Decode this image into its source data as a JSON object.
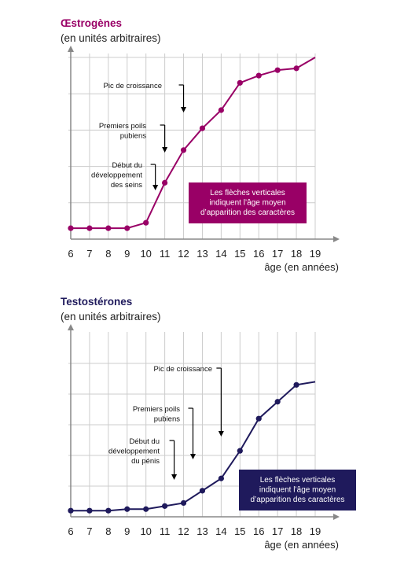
{
  "colors": {
    "estrogen": "#990066",
    "testosterone": "#1f1a5c",
    "grid": "#cccccc",
    "axis": "#888888"
  },
  "chart_data": [
    {
      "type": "line",
      "title": "Œstrogènes",
      "ylabel": "(en unités arbitraires)",
      "xlabel": "âge (en années)",
      "x": [
        6,
        7,
        8,
        9,
        10,
        11,
        12,
        13,
        14,
        15,
        16,
        17,
        18,
        19
      ],
      "xlim": [
        6,
        19
      ],
      "ylim": [
        0,
        100
      ],
      "grid": true,
      "series": [
        {
          "values": [
            6,
            6,
            6,
            6,
            9,
            31,
            49,
            61,
            71,
            86,
            90,
            93,
            94,
            100
          ]
        }
      ],
      "annotations": [
        {
          "lines": [
            "Pic de croissance"
          ],
          "x_age": 12
        },
        {
          "lines": [
            "Premiers poils",
            "pubiens"
          ],
          "x_age": 11
        },
        {
          "lines": [
            "Début du",
            "développement",
            "des seins"
          ],
          "x_age": 10.5
        }
      ],
      "note": [
        "Les flèches verticales",
        "indiquent l’âge moyen",
        "d’apparition des caractères"
      ]
    },
    {
      "type": "line",
      "title": "Testostérones",
      "ylabel": "(en unités arbitraires)",
      "xlabel": "âge (en années)",
      "x": [
        6,
        7,
        8,
        9,
        10,
        11,
        12,
        13,
        14,
        15,
        16,
        17,
        18,
        19
      ],
      "xlim": [
        6,
        19
      ],
      "ylim": [
        0,
        100
      ],
      "grid": true,
      "series": [
        {
          "values": [
            4,
            4,
            4,
            5,
            5,
            7,
            9,
            17,
            25,
            43,
            64,
            75,
            86,
            88
          ]
        }
      ],
      "annotations": [
        {
          "lines": [
            "Pic de croissance"
          ],
          "x_age": 14
        },
        {
          "lines": [
            "Premiers poils",
            "pubiens"
          ],
          "x_age": 12.5
        },
        {
          "lines": [
            "Début du",
            "développement",
            "du pénis"
          ],
          "x_age": 11.5
        }
      ],
      "note": [
        "Les flèches verticales",
        "indiquent l’âge moyen",
        "d’apparition des caractères"
      ]
    }
  ]
}
